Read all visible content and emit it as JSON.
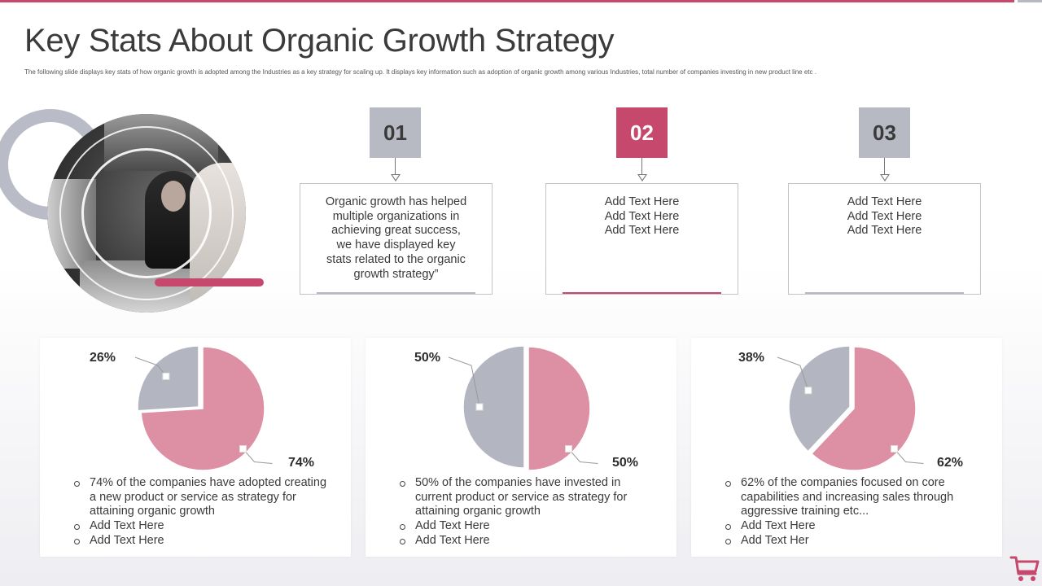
{
  "title": "Key Stats About Organic Growth Strategy",
  "subtitle": "The  following slide displays key stats of how organic growth  is adopted among  the Industries as  a  key strategy for scaling up. It displays key information such as adoption of organic growth among  various Industries, total number of companies investing in new  product line etc .",
  "colors": {
    "accent": "#c6496d",
    "gray": "#b8bac3",
    "pie_pink": "#dd8fa3",
    "pie_gray": "#b3b6c0"
  },
  "steps": [
    {
      "number": "01",
      "lines": [
        "Organic growth has helped",
        "multiple organizations in",
        "achieving great success,",
        "we have displayed key",
        "stats related to the organic",
        "growth strategy”"
      ]
    },
    {
      "number": "02",
      "lines": [
        "Add Text Here",
        "Add Text Here",
        "Add Text Here"
      ]
    },
    {
      "number": "03",
      "lines": [
        "Add Text Here",
        "Add Text Here",
        "Add Text Here"
      ]
    }
  ],
  "chart_data": [
    {
      "type": "pie",
      "labels": [
        "74%",
        "26%"
      ],
      "values": [
        74,
        26
      ],
      "colors": [
        "#dd8fa3",
        "#b3b6c0"
      ]
    },
    {
      "type": "pie",
      "labels": [
        "50%",
        "50%"
      ],
      "values": [
        50,
        50
      ],
      "colors": [
        "#dd8fa3",
        "#b3b6c0"
      ]
    },
    {
      "type": "pie",
      "labels": [
        "62%",
        "38%"
      ],
      "values": [
        62,
        38
      ],
      "colors": [
        "#dd8fa3",
        "#b3b6c0"
      ]
    }
  ],
  "cards": [
    {
      "big_label": "74%",
      "small_label": "26%",
      "bullets": [
        "74% of the companies have adopted creating a new product or service as strategy for attaining organic growth",
        "Add Text Here",
        "Add Text Here"
      ]
    },
    {
      "big_label": "50%",
      "small_label": "50%",
      "bullets": [
        "50% of the companies have invested in current product or service as strategy for attaining organic growth",
        "Add Text Here",
        "Add Text Here"
      ]
    },
    {
      "big_label": "62%",
      "small_label": "38%",
      "bullets": [
        "62% of the companies focused on core capabilities and increasing sales through aggressive training etc...",
        "Add Text Here",
        "Add Text Her"
      ]
    }
  ],
  "icons": {
    "corner": "shopping-cart-icon"
  }
}
